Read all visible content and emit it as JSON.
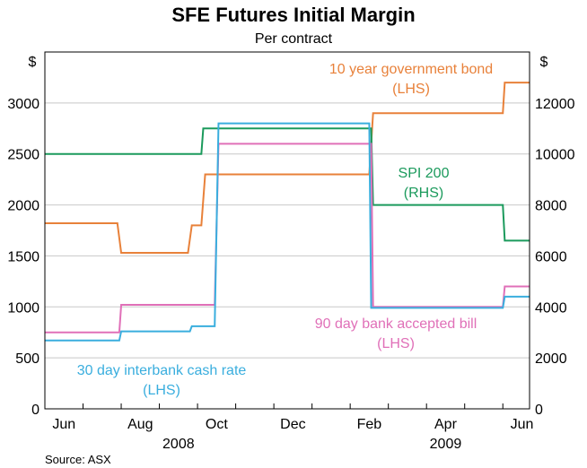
{
  "chart_data": {
    "type": "line",
    "title": "SFE Futures Initial Margin",
    "subtitle": "Per contract",
    "source": "Source: ASX",
    "left_axis": {
      "unit": "$",
      "ylim": [
        0,
        3500
      ],
      "ticks": [
        0,
        500,
        1000,
        1500,
        2000,
        2500,
        3000
      ]
    },
    "right_axis": {
      "unit": "$",
      "ylim": [
        0,
        14000
      ],
      "ticks": [
        0,
        2000,
        4000,
        6000,
        8000,
        10000,
        12000
      ]
    },
    "x_axis": {
      "xlim": [
        0,
        12.7
      ],
      "month_ticks": [
        {
          "x": 0.5,
          "label": "Jun"
        },
        {
          "x": 2.5,
          "label": "Aug"
        },
        {
          "x": 4.5,
          "label": "Oct"
        },
        {
          "x": 6.5,
          "label": "Dec"
        },
        {
          "x": 8.5,
          "label": "Feb"
        },
        {
          "x": 10.5,
          "label": "Apr"
        },
        {
          "x": 12.5,
          "label": "Jun"
        }
      ],
      "year_labels": [
        {
          "x": 3.5,
          "label": "2008"
        },
        {
          "x": 10.5,
          "label": "2009"
        }
      ],
      "minor_ticks": [
        1,
        2,
        3,
        4,
        5,
        6,
        7,
        8,
        9,
        10,
        11,
        12
      ]
    },
    "grid": true,
    "series": [
      {
        "name": "10 year government bond",
        "axis_label": "(LHS)",
        "axis": "left",
        "color": "#e8813a",
        "points": [
          [
            0,
            1820
          ],
          [
            1.9,
            1820
          ],
          [
            2.0,
            1530
          ],
          [
            3.75,
            1530
          ],
          [
            3.85,
            1800
          ],
          [
            4.1,
            1800
          ],
          [
            4.2,
            2300
          ],
          [
            8.5,
            2300
          ],
          [
            8.6,
            2900
          ],
          [
            12.0,
            2900
          ],
          [
            12.05,
            3200
          ],
          [
            12.7,
            3200
          ]
        ]
      },
      {
        "name": "SPI 200",
        "axis_label": "(RHS)",
        "axis": "right",
        "color": "#1b9a5c",
        "points": [
          [
            0,
            10000
          ],
          [
            4.1,
            10000
          ],
          [
            4.15,
            11000
          ],
          [
            8.55,
            11000
          ],
          [
            8.6,
            8000
          ],
          [
            12.0,
            8000
          ],
          [
            12.05,
            6600
          ],
          [
            12.7,
            6600
          ]
        ]
      },
      {
        "name": "90 day bank accepted bill",
        "axis_label": "(LHS)",
        "axis": "left",
        "color": "#e070b8",
        "points": [
          [
            0,
            750
          ],
          [
            1.95,
            750
          ],
          [
            2.0,
            1020
          ],
          [
            4.45,
            1020
          ],
          [
            4.55,
            2600
          ],
          [
            8.55,
            2600
          ],
          [
            8.6,
            1000
          ],
          [
            12.0,
            1000
          ],
          [
            12.05,
            1200
          ],
          [
            12.7,
            1200
          ]
        ]
      },
      {
        "name": "30 day interbank cash rate",
        "axis_label": "(LHS)",
        "axis": "left",
        "color": "#3aaede",
        "points": [
          [
            0,
            670
          ],
          [
            1.95,
            670
          ],
          [
            2.0,
            760
          ],
          [
            3.8,
            760
          ],
          [
            3.85,
            810
          ],
          [
            4.45,
            810
          ],
          [
            4.55,
            2800
          ],
          [
            8.5,
            2800
          ],
          [
            8.55,
            990
          ],
          [
            12.0,
            990
          ],
          [
            12.05,
            1100
          ],
          [
            12.7,
            1100
          ]
        ]
      }
    ]
  }
}
